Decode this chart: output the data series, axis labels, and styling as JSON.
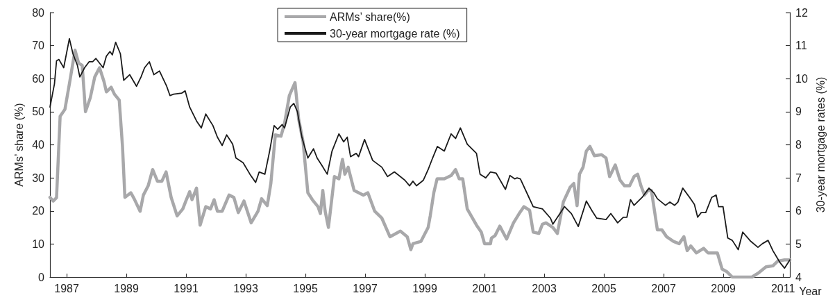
{
  "chart_data": {
    "type": "line",
    "xlabel": "Year",
    "ylabel": "ARMs’ share (%)",
    "y2label": "30-year mortgage rates (%)",
    "xlim": [
      1986.44,
      2011.23
    ],
    "xticks": [
      1987,
      1989,
      1991,
      1993,
      1995,
      1997,
      1999,
      2001,
      2003,
      2005,
      2007,
      2009,
      2011
    ],
    "ylim": [
      0,
      80
    ],
    "yticks": [
      0,
      10,
      20,
      30,
      40,
      50,
      60,
      70,
      80
    ],
    "y2lim": [
      4,
      12
    ],
    "y2ticks": [
      4,
      5,
      6,
      7,
      8,
      9,
      10,
      11,
      12
    ],
    "grid": false,
    "legend": "top",
    "marker": "none",
    "series": [
      {
        "name": "ARMs’ share(%)",
        "color": "#a8a8aa",
        "x": [
          1986.44,
          1986.55,
          1986.66,
          1986.78,
          1986.94,
          1987.09,
          1987.28,
          1987.4,
          1987.52,
          1987.63,
          1987.79,
          1987.94,
          1988.1,
          1988.25,
          1988.33,
          1988.49,
          1988.6,
          1988.76,
          1988.87,
          1988.95,
          1989.15,
          1989.26,
          1989.46,
          1989.57,
          1989.73,
          1989.88,
          1990.04,
          1990.19,
          1990.33,
          1990.5,
          1990.7,
          1990.89,
          1991.01,
          1991.12,
          1991.2,
          1991.35,
          1991.47,
          1991.66,
          1991.82,
          1991.94,
          1992.05,
          1992.21,
          1992.44,
          1992.6,
          1992.75,
          1992.94,
          1993.18,
          1993.41,
          1993.53,
          1993.72,
          1993.84,
          1993.99,
          1994.18,
          1994.3,
          1994.46,
          1994.65,
          1994.77,
          1994.92,
          1995.08,
          1995.23,
          1995.42,
          1995.5,
          1995.58,
          1995.66,
          1995.77,
          1995.97,
          1996.12,
          1996.24,
          1996.32,
          1996.43,
          1996.63,
          1996.94,
          1997.09,
          1997.32,
          1997.56,
          1997.83,
          1998.18,
          1998.41,
          1998.53,
          1998.6,
          1998.87,
          1999.11,
          1999.18,
          1999.3,
          1999.41,
          1999.65,
          1999.88,
          2000.03,
          2000.15,
          2000.27,
          2000.42,
          2000.73,
          2000.89,
          2001.0,
          2001.2,
          2001.23,
          2001.35,
          2001.51,
          2001.74,
          2001.97,
          2002.16,
          2002.32,
          2002.51,
          2002.63,
          2002.82,
          2002.94,
          2003.06,
          2003.29,
          2003.44,
          2003.64,
          2003.87,
          2003.99,
          2004.1,
          2004.18,
          2004.3,
          2004.41,
          2004.53,
          2004.68,
          2004.92,
          2005.07,
          2005.19,
          2005.38,
          2005.54,
          2005.69,
          2005.86,
          2006.01,
          2006.13,
          2006.24,
          2006.36,
          2006.48,
          2006.59,
          2006.79,
          2006.94,
          2007.1,
          2007.33,
          2007.52,
          2007.68,
          2007.79,
          2007.91,
          2008.1,
          2008.34,
          2008.49,
          2008.8,
          2008.96,
          2009.11,
          2009.3,
          2009.96,
          2010.2,
          2010.43,
          2010.66,
          2010.82,
          2011.05,
          2011.23
        ],
        "values": [
          24.1,
          23,
          24,
          48.6,
          50.7,
          58.4,
          68.6,
          64.7,
          64,
          50,
          54.2,
          60.5,
          63.3,
          59.1,
          56,
          57.4,
          55.3,
          53.5,
          39.5,
          24.1,
          25.5,
          23.7,
          19.9,
          24.8,
          27.6,
          32.5,
          29,
          29,
          31.8,
          24.1,
          18.5,
          20.6,
          23.4,
          25.8,
          23.4,
          26.9,
          15.7,
          21.3,
          20.6,
          23.4,
          19.9,
          19.9,
          24.8,
          24.1,
          19.5,
          23,
          16.4,
          19.9,
          23.7,
          21.6,
          28.3,
          43,
          42.6,
          46.5,
          54.9,
          58.8,
          47.9,
          40.9,
          25.5,
          23.4,
          21.3,
          19.2,
          26.2,
          19.9,
          15,
          30.4,
          29.7,
          35.6,
          31.1,
          33.2,
          26.2,
          24.8,
          25.5,
          19.9,
          17.8,
          12.2,
          13.9,
          12.2,
          8.3,
          10.1,
          10.8,
          15,
          18.5,
          25.5,
          29.7,
          29.7,
          30.7,
          32.5,
          29.7,
          29.7,
          20.6,
          15.7,
          13.6,
          10.1,
          10.1,
          11.8,
          12.5,
          15.4,
          11.5,
          16.4,
          19.2,
          21.3,
          20.2,
          13.6,
          13.2,
          16,
          16.4,
          15,
          13.2,
          22.7,
          27.2,
          28.3,
          21.6,
          31.1,
          33.2,
          38.1,
          39.5,
          36.7,
          37,
          36,
          30.4,
          33.9,
          29.3,
          27.6,
          27.6,
          30.4,
          31.1,
          27.6,
          24.8,
          26.2,
          26.2,
          14.3,
          14.3,
          12.2,
          10.8,
          10.1,
          12.2,
          8,
          9.4,
          7.3,
          8.7,
          7.3,
          7.3,
          2.4,
          1.7,
          0,
          0,
          1.4,
          3.1,
          3.4,
          4.8,
          5.2,
          5.2
        ]
      },
      {
        "name": "30-year mortgage rate (%)",
        "color": "#1a1a1a",
        "axis": "y2",
        "x": [
          1986.44,
          1986.59,
          1986.66,
          1986.74,
          1986.9,
          1987.09,
          1987.21,
          1987.36,
          1987.44,
          1987.6,
          1987.75,
          1987.87,
          1987.98,
          1988.22,
          1988.33,
          1988.45,
          1988.53,
          1988.64,
          1988.8,
          1988.91,
          1989.11,
          1989.34,
          1989.49,
          1989.61,
          1989.77,
          1989.92,
          1990.11,
          1990.35,
          1990.46,
          1990.58,
          1990.85,
          1990.97,
          1991.12,
          1991.35,
          1991.51,
          1991.66,
          1991.9,
          1992.05,
          1992.21,
          1992.36,
          1992.56,
          1992.67,
          1992.91,
          1993.14,
          1993.33,
          1993.45,
          1993.64,
          1993.8,
          1993.95,
          1994.07,
          1994.22,
          1994.3,
          1994.49,
          1994.61,
          1994.73,
          1994.88,
          1995.08,
          1995.27,
          1995.39,
          1995.54,
          1995.73,
          1995.89,
          1996.12,
          1996.28,
          1996.4,
          1996.51,
          1996.7,
          1996.78,
          1996.98,
          1997.25,
          1997.56,
          1997.75,
          1997.98,
          1998.33,
          1998.49,
          1998.6,
          1998.72,
          1998.95,
          1999.11,
          1999.26,
          1999.42,
          1999.65,
          1999.88,
          2000.03,
          2000.19,
          2000.42,
          2000.73,
          2000.85,
          2001.04,
          2001.2,
          2001.39,
          2001.7,
          2001.85,
          2002.01,
          2002.09,
          2002.2,
          2002.63,
          2002.94,
          2003.21,
          2003.29,
          2003.68,
          2003.91,
          2004.14,
          2004.41,
          2004.61,
          2004.76,
          2005.07,
          2005.23,
          2005.46,
          2005.65,
          2005.77,
          2005.89,
          2006.01,
          2006.28,
          2006.51,
          2006.67,
          2006.79,
          2007.06,
          2007.21,
          2007.37,
          2007.48,
          2007.64,
          2007.87,
          2008.03,
          2008.14,
          2008.26,
          2008.41,
          2008.61,
          2008.76,
          2008.84,
          2008.99,
          2009.15,
          2009.3,
          2009.5,
          2009.65,
          2009.92,
          2010.16,
          2010.31,
          2010.5,
          2010.66,
          2010.89,
          2011.05,
          2011.23
        ],
        "values": [
          9.14,
          9.84,
          10.54,
          10.58,
          10.33,
          11.21,
          10.75,
          10.4,
          10.05,
          10.33,
          10.51,
          10.51,
          10.61,
          10.33,
          10.68,
          10.82,
          10.72,
          11.1,
          10.75,
          9.95,
          10.12,
          9.77,
          10.05,
          10.33,
          10.51,
          10.12,
          10.23,
          9.77,
          9.49,
          9.53,
          9.56,
          9.63,
          9.14,
          8.72,
          8.51,
          8.93,
          8.58,
          8.23,
          7.98,
          8.3,
          8.02,
          7.6,
          7.46,
          7.11,
          6.86,
          7.18,
          7.11,
          7.81,
          8.58,
          8.47,
          8.61,
          8.51,
          9.14,
          9.25,
          9.0,
          8.23,
          7.6,
          7.88,
          7.6,
          7.39,
          7.11,
          7.81,
          8.33,
          8.09,
          8.23,
          7.64,
          7.74,
          7.64,
          8.16,
          7.53,
          7.32,
          7.04,
          7.18,
          6.93,
          6.76,
          6.9,
          6.76,
          6.93,
          7.25,
          7.6,
          7.95,
          7.81,
          8.33,
          8.19,
          8.51,
          8.02,
          7.74,
          7.11,
          7.0,
          7.18,
          7.14,
          6.65,
          7.07,
          6.97,
          7.0,
          6.97,
          6.13,
          6.06,
          5.78,
          5.6,
          6.13,
          5.92,
          5.53,
          6.3,
          5.99,
          5.78,
          5.74,
          5.92,
          5.64,
          5.81,
          5.81,
          6.34,
          6.17,
          6.41,
          6.69,
          6.55,
          6.37,
          6.17,
          6.27,
          6.17,
          6.27,
          6.69,
          6.41,
          6.2,
          5.81,
          5.95,
          5.95,
          6.41,
          6.48,
          6.13,
          6.13,
          5.18,
          5.11,
          4.83,
          5.36,
          5.08,
          4.9,
          5.01,
          5.11,
          4.8,
          4.45,
          4.27,
          4.52
        ]
      }
    ]
  }
}
